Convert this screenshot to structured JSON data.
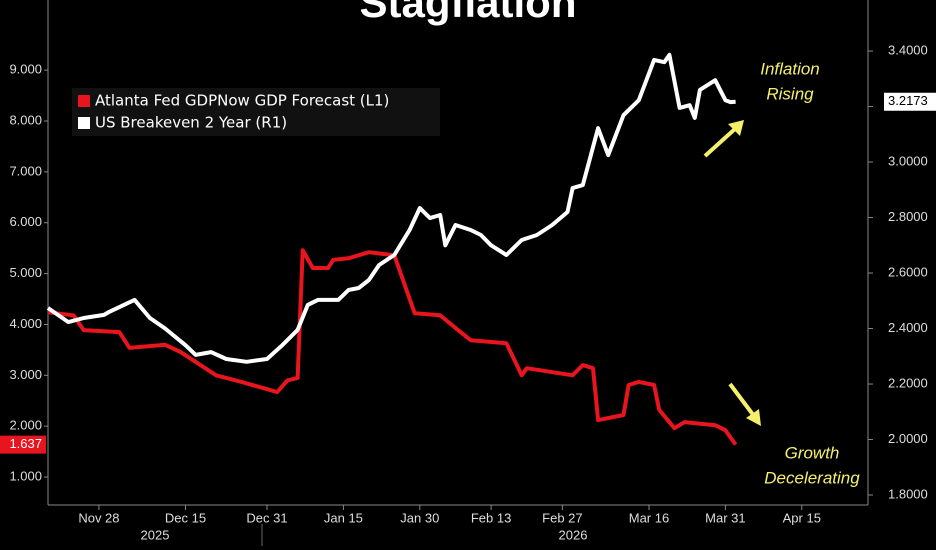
{
  "chart_data": {
    "type": "line",
    "title": "Stagflation",
    "xlim": [
      "2025-11-18",
      "2026-04-28"
    ],
    "xticks": [
      {
        "value": "2025-11-28",
        "label": "Nov 28"
      },
      {
        "value": "2025-12-15",
        "label": "Dec 15"
      },
      {
        "value": "2025-12-31",
        "label": "Dec 31"
      },
      {
        "value": "2026-01-15",
        "label": "Jan 15"
      },
      {
        "value": "2026-01-30",
        "label": "Jan 30"
      },
      {
        "value": "2026-02-13",
        "label": "Feb 13"
      },
      {
        "value": "2026-02-27",
        "label": "Feb 27"
      },
      {
        "value": "2026-03-16",
        "label": "Mar 16"
      },
      {
        "value": "2026-03-31",
        "label": "Mar 31"
      },
      {
        "value": "2026-04-15",
        "label": "Apr 15"
      }
    ],
    "x_group_labels": [
      "2025",
      "2026"
    ],
    "ylim": [
      0.45,
      10.38
    ],
    "yticks": [
      {
        "value": 1,
        "label": "1.000"
      },
      {
        "value": 2,
        "label": "2.000"
      },
      {
        "value": 3,
        "label": "3.000"
      },
      {
        "value": 4,
        "label": "4.000"
      },
      {
        "value": 5,
        "label": "5.000"
      },
      {
        "value": 6,
        "label": "6.000"
      },
      {
        "value": 7,
        "label": "7.000"
      },
      {
        "value": 8,
        "label": "8.000"
      },
      {
        "value": 9,
        "label": "9.000"
      }
    ],
    "y2lim": [
      1.764,
      3.584
    ],
    "y2ticks": [
      {
        "value": 1.8,
        "label": "1.8000"
      },
      {
        "value": 2.0,
        "label": "2.0000"
      },
      {
        "value": 2.2,
        "label": "2.2000"
      },
      {
        "value": 2.4,
        "label": "2.4000"
      },
      {
        "value": 2.6,
        "label": "2.6000"
      },
      {
        "value": 2.8,
        "label": "2.8000"
      },
      {
        "value": 3.0,
        "label": "3.0000"
      },
      {
        "value": 3.2,
        "label": "3.2000"
      },
      {
        "value": 3.4,
        "label": "3.4000"
      }
    ],
    "grid": false,
    "legend": "upper-left",
    "series": [
      {
        "name": "Atlanta Fed GDPNow GDP Forecast  (L1)",
        "color": "#e8141e",
        "axis": "y",
        "x": [
          "2025-11-18",
          "2025-11-23",
          "2025-11-25",
          "2025-12-02",
          "2025-12-04",
          "2025-12-11",
          "2025-12-14",
          "2025-12-21",
          "2025-12-26",
          "2026-01-02",
          "2026-01-04",
          "2026-01-06",
          "2026-01-07",
          "2026-01-09",
          "2026-01-12",
          "2026-01-13",
          "2026-01-16",
          "2026-01-20",
          "2026-01-25",
          "2026-01-29",
          "2026-02-03",
          "2026-02-07",
          "2026-02-09",
          "2026-02-16",
          "2026-02-19",
          "2026-02-20",
          "2026-03-01",
          "2026-03-03",
          "2026-03-05",
          "2026-03-06",
          "2026-03-11",
          "2026-03-12",
          "2026-03-14",
          "2026-03-17",
          "2026-03-18",
          "2026-03-21",
          "2026-03-23",
          "2026-03-29",
          "2026-03-31",
          "2026-04-02"
        ],
        "values": [
          4.24,
          4.18,
          3.89,
          3.85,
          3.54,
          3.6,
          3.46,
          3.0,
          2.87,
          2.67,
          2.9,
          2.95,
          5.46,
          5.11,
          5.11,
          5.27,
          5.3,
          5.42,
          5.36,
          4.22,
          4.18,
          3.85,
          3.69,
          3.63,
          3.0,
          3.14,
          3.0,
          3.2,
          3.14,
          2.12,
          2.22,
          2.81,
          2.87,
          2.81,
          2.32,
          1.96,
          2.08,
          2.02,
          1.92,
          1.637
        ]
      },
      {
        "name": "US Breakeven 2 Year  (R1)",
        "color": "#ffffff",
        "axis": "y2",
        "x": [
          "2025-11-18",
          "2025-11-22",
          "2025-11-25",
          "2025-11-29",
          "2025-11-30",
          "2025-12-05",
          "2025-12-08",
          "2025-12-11",
          "2025-12-15",
          "2025-12-17",
          "2025-12-20",
          "2025-12-23",
          "2025-12-27",
          "2025-12-31",
          "2026-01-03",
          "2026-01-06",
          "2026-01-08",
          "2026-01-10",
          "2026-01-14",
          "2026-01-16",
          "2026-01-18",
          "2026-01-20",
          "2026-01-22",
          "2026-01-25",
          "2026-01-28",
          "2026-01-30",
          "2026-02-01",
          "2026-02-03",
          "2026-02-04",
          "2026-02-06",
          "2026-02-09",
          "2026-02-11",
          "2026-02-13",
          "2026-02-16",
          "2026-02-19",
          "2026-02-22",
          "2026-02-25",
          "2026-02-28",
          "2026-03-01",
          "2026-03-03",
          "2026-03-06",
          "2026-03-08",
          "2026-03-11",
          "2026-03-14",
          "2026-03-17",
          "2026-03-19",
          "2026-03-20",
          "2026-03-22",
          "2026-03-24",
          "2026-03-25",
          "2026-03-26",
          "2026-03-29",
          "2026-03-31",
          "2026-04-01",
          "2026-04-02"
        ],
        "values": [
          2.474,
          2.423,
          2.438,
          2.449,
          2.46,
          2.503,
          2.438,
          2.4,
          2.34,
          2.305,
          2.315,
          2.29,
          2.28,
          2.29,
          2.34,
          2.395,
          2.485,
          2.503,
          2.503,
          2.539,
          2.546,
          2.575,
          2.629,
          2.665,
          2.755,
          2.834,
          2.798,
          2.809,
          2.7,
          2.773,
          2.755,
          2.737,
          2.7,
          2.665,
          2.719,
          2.737,
          2.773,
          2.82,
          2.906,
          2.917,
          3.122,
          3.025,
          3.169,
          3.223,
          3.368,
          3.36,
          3.386,
          3.195,
          3.205,
          3.159,
          3.26,
          3.295,
          3.223,
          3.216,
          3.2173
        ]
      }
    ],
    "annotations": [
      {
        "text": [
          "Inflation",
          "Rising"
        ],
        "color": "#f5f06a"
      },
      {
        "text": [
          "Growth",
          "Decelerating"
        ],
        "color": "#f5f06a"
      }
    ]
  }
}
